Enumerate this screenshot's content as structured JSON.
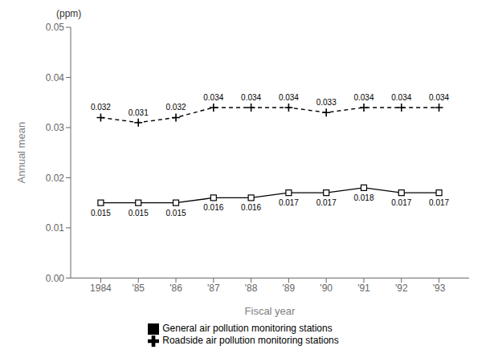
{
  "chart_data": {
    "type": "line",
    "x_label": "Fiscal year",
    "y_label": "Annual mean",
    "annotations": [
      "(ppm)"
    ],
    "x": [
      1984,
      1985,
      1986,
      1987,
      1988,
      1989,
      1990,
      1991,
      1992,
      1993
    ],
    "series": [
      {
        "name": "General air pollution monitoring stations",
        "color": "#000000",
        "marker": "square",
        "line_style": "solid",
        "values": [
          0.015,
          0.015,
          0.015,
          0.016,
          0.016,
          0.017,
          0.017,
          0.018,
          0.017,
          0.017
        ]
      },
      {
        "name": "Roadside air pollution monitoring stations",
        "color": "#000000",
        "marker": "plus",
        "line_style": "dashed",
        "values": [
          0.032,
          0.031,
          0.032,
          0.034,
          0.034,
          0.034,
          0.033,
          0.034,
          0.034,
          0.034
        ]
      }
    ],
    "xlim": [
      1983.2,
      1993.8
    ],
    "xticks": [
      {
        "value": 1984,
        "label": "1984"
      },
      {
        "value": 1985,
        "label": "'85"
      },
      {
        "value": 1986,
        "label": "'86"
      },
      {
        "value": 1987,
        "label": "'87"
      },
      {
        "value": 1988,
        "label": "'88"
      },
      {
        "value": 1989,
        "label": "'89"
      },
      {
        "value": 1990,
        "label": "'90"
      },
      {
        "value": 1991,
        "label": "'91"
      },
      {
        "value": 1992,
        "label": "'92"
      },
      {
        "value": 1993,
        "label": "'93"
      }
    ],
    "ylim": [
      0.0,
      0.05
    ],
    "yticks": [
      {
        "value": 0.0,
        "label": "0.00"
      },
      {
        "value": 0.01,
        "label": "0.01"
      },
      {
        "value": 0.02,
        "label": "0.02"
      },
      {
        "value": 0.03,
        "label": "0.03"
      },
      {
        "value": 0.04,
        "label": "0.04"
      },
      {
        "value": 0.05,
        "label": "0.05"
      }
    ],
    "grid": false,
    "legend": "bottom",
    "data_labels": true
  }
}
